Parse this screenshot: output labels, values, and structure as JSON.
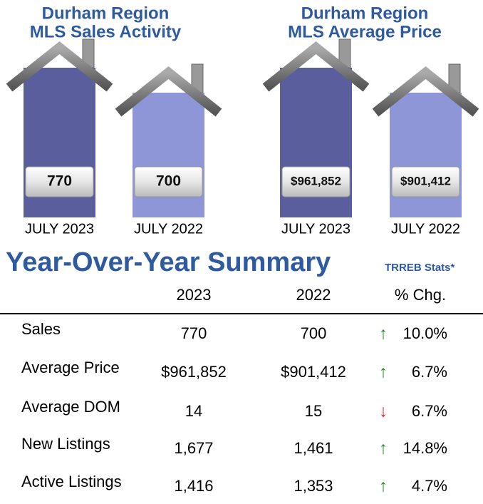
{
  "panels": [
    {
      "title": [
        "Durham Region",
        "MLS Sales Activity"
      ],
      "items": [
        {
          "value": "770",
          "label": "JULY 2023"
        },
        {
          "value": "700",
          "label": "JULY 2022"
        }
      ]
    },
    {
      "title": [
        "Durham Region",
        "MLS Average Price"
      ],
      "items": [
        {
          "value": "$961,852",
          "label": "JULY 2023"
        },
        {
          "value": "$901,412",
          "label": "JULY 2022"
        }
      ]
    }
  ],
  "summary": {
    "title": "Year-Over-Year Summary",
    "source": "TRREB  Stats*",
    "columns": [
      "2023",
      "2022",
      "% Chg."
    ],
    "rows": [
      [
        "Sales",
        "770",
        "700",
        "↑",
        "10.0%"
      ],
      [
        "Average Price",
        "$961,852",
        "$901,412",
        "↑",
        "6.7%"
      ],
      [
        "Average DOM",
        "14",
        "15",
        "↓",
        "6.7%"
      ],
      [
        "New Listings",
        "1,677",
        "1,461",
        "↑",
        "14.8%"
      ],
      [
        "Active Listings",
        "1,416",
        "1,353",
        "↑",
        "4.7%"
      ]
    ]
  }
}
